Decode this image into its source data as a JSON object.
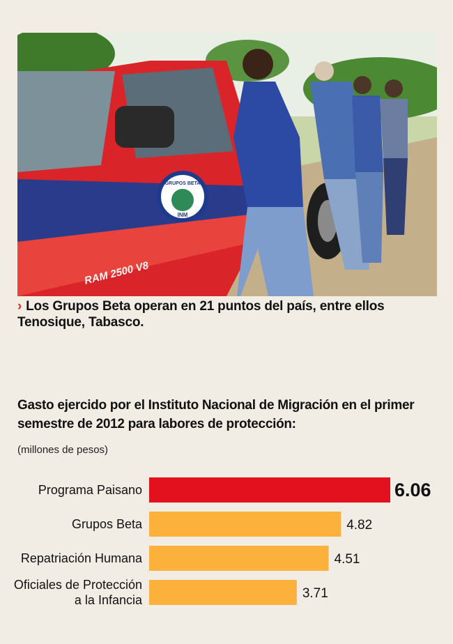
{
  "photo": {
    "badge_top": "GRUPOS BETA",
    "badge_bottom": "INM",
    "truck_model": "RAM 2500 V8"
  },
  "caption": {
    "marker": "›",
    "text": "Los Grupos Beta operan en 21 puntos del país, entre ellos Tenosique, Tabasco."
  },
  "colors": {
    "highlight": "#e3101e",
    "bar": "#fbb13c",
    "background": "#f1ede4"
  },
  "chart_data": {
    "type": "bar",
    "orientation": "horizontal",
    "title": "Gasto ejercido por el Instituto Nacional de Migración en el primer semestre de 2012 para labores de protección:",
    "units": "(millones de pesos)",
    "categories": [
      [
        "Programa Paisano"
      ],
      [
        "Grupos Beta"
      ],
      [
        "Repatriación Humana"
      ],
      [
        "Oficiales de Protección",
        "a la Infancia"
      ]
    ],
    "values": [
      6.06,
      4.82,
      4.51,
      3.71
    ],
    "value_labels": [
      "6.06",
      "4.82",
      "4.51",
      "3.71"
    ],
    "highlighted_index": 0,
    "xlim": [
      0,
      6.06
    ]
  }
}
